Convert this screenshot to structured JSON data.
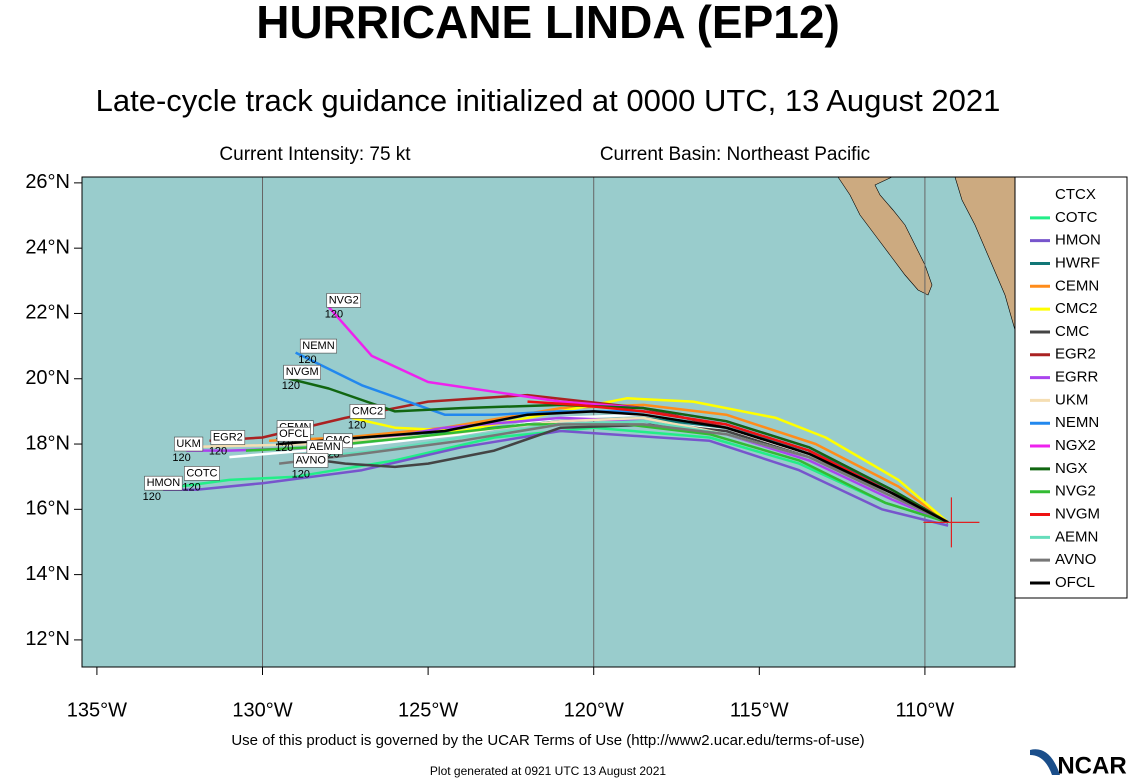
{
  "chart_data": {
    "type": "track",
    "title": "HURRICANE LINDA (EP12)",
    "subtitle": "Late-cycle track guidance initialized at 0000 UTC, 13 August 2021",
    "intensity": "Current Intensity: 75 kt",
    "basin": "Current Basin: Northeast Pacific",
    "footer": "Use of this product is governed by the UCAR Terms of Use (http://www2.ucar.edu/terms-of-use)",
    "generated": "Plot generated at 0921 UTC   13 August 2021",
    "logo": "NCAR",
    "xlim": [
      -135.45,
      -107.28
    ],
    "ylim": [
      11.17,
      26.18
    ],
    "xticks": [
      {
        "value": -135,
        "label": "135°W"
      },
      {
        "value": -130,
        "label": "130°W"
      },
      {
        "value": -125,
        "label": "125°W"
      },
      {
        "value": -120,
        "label": "120°W"
      },
      {
        "value": -115,
        "label": "115°W"
      },
      {
        "value": -110,
        "label": "110°W"
      }
    ],
    "yticks": [
      {
        "value": 12,
        "label": "12°N"
      },
      {
        "value": 14,
        "label": "14°N"
      },
      {
        "value": 16,
        "label": "16°N"
      },
      {
        "value": 18,
        "label": "18°N"
      },
      {
        "value": 20,
        "label": "20°N"
      },
      {
        "value": 22,
        "label": "22°N"
      },
      {
        "value": 24,
        "label": "24°N"
      },
      {
        "value": 26,
        "label": "26°N"
      }
    ],
    "grid": true,
    "current_position": {
      "lon": -109.2,
      "lat": 15.6
    },
    "series": [
      {
        "name": "CTCX",
        "color": "#ffffff",
        "x": [
          -109.3,
          -111,
          -113.5,
          -116,
          -118.5,
          -121,
          -124,
          -127.5,
          -131
        ],
        "values": [
          15.6,
          16.4,
          17.7,
          18.4,
          18.9,
          18.8,
          18.3,
          17.9,
          17.6
        ]
      },
      {
        "name": "COTC",
        "color": "#22ee88",
        "x": [
          -109.3,
          -111.2,
          -113.8,
          -116.5,
          -120,
          -123,
          -126,
          -129,
          -131,
          -132.5
        ],
        "values": [
          15.6,
          16.2,
          17.4,
          18.2,
          18.5,
          18.2,
          17.5,
          17.0,
          16.9,
          16.7
        ]
      },
      {
        "name": "HMON",
        "color": "#7755cc",
        "x": [
          -109.3,
          -111.3,
          -113.8,
          -116.5,
          -121,
          -124,
          -127,
          -130,
          -132,
          -133
        ],
        "values": [
          15.5,
          16.0,
          17.2,
          18.1,
          18.4,
          17.9,
          17.2,
          16.8,
          16.6,
          16.6
        ]
      },
      {
        "name": "HWRF",
        "color": "#117777",
        "x": [
          -109.3,
          -111,
          -113.5,
          -116,
          -118.5,
          -121,
          -124,
          -127
        ],
        "values": [
          15.6,
          16.6,
          17.8,
          18.5,
          18.8,
          18.7,
          18.4,
          18.2
        ]
      },
      {
        "name": "CEMN",
        "color": "#ff8c1a",
        "x": [
          -109.3,
          -110.8,
          -113.3,
          -116,
          -118.5,
          -121,
          -124.5,
          -127.5,
          -129.8
        ],
        "values": [
          15.6,
          16.7,
          18.0,
          18.9,
          19.2,
          19.1,
          18.5,
          18.2,
          18.1
        ]
      },
      {
        "name": "CMC2",
        "color": "#ffff00",
        "x": [
          -109.3,
          -110.8,
          -113,
          -114.5,
          -117,
          -119,
          -121,
          -124,
          -126,
          -127.3
        ],
        "values": [
          15.6,
          16.9,
          18.2,
          18.8,
          19.3,
          19.4,
          19.0,
          18.4,
          18.5,
          18.8
        ]
      },
      {
        "name": "CMC",
        "color": "#444444",
        "x": [
          -109.3,
          -111,
          -113.5,
          -116,
          -118,
          -121,
          -123,
          -125,
          -126,
          -127.5,
          -129
        ],
        "values": [
          15.6,
          16.5,
          17.6,
          18.4,
          18.6,
          18.5,
          17.8,
          17.4,
          17.3,
          17.4,
          17.6
        ]
      },
      {
        "name": "EGR2",
        "color": "#aa2222",
        "x": [
          -109.3,
          -111,
          -113.5,
          -116,
          -118.5,
          -122,
          -125,
          -127.5,
          -130,
          -131.6
        ],
        "values": [
          15.6,
          16.5,
          17.7,
          18.5,
          19.1,
          19.5,
          19.3,
          18.8,
          18.2,
          18.1
        ]
      },
      {
        "name": "EGRR",
        "color": "#aa44ee",
        "x": [
          -109.3,
          -111,
          -113.5,
          -116,
          -118.5,
          -121,
          -124.5,
          -128,
          -131,
          -132.3
        ],
        "values": [
          15.6,
          16.3,
          17.5,
          18.3,
          18.7,
          18.8,
          18.5,
          17.9,
          17.8,
          17.8
        ]
      },
      {
        "name": "UKM",
        "color": "#f5deb3",
        "x": [
          -109.3,
          -111,
          -113.5,
          -116,
          -118.5,
          -121,
          -124.5,
          -128.5,
          -132.5
        ],
        "values": [
          15.6,
          16.4,
          17.6,
          18.3,
          18.8,
          18.7,
          18.3,
          18.0,
          17.9
        ]
      },
      {
        "name": "NEMN",
        "color": "#2288ee",
        "x": [
          -109.3,
          -111,
          -113.5,
          -116,
          -118.5,
          -121,
          -123,
          -124.5,
          -127,
          -129
        ],
        "values": [
          15.6,
          16.5,
          17.8,
          18.6,
          19.0,
          19.0,
          18.9,
          18.9,
          19.8,
          20.8
        ]
      },
      {
        "name": "NGX2",
        "color": "#ee22ee",
        "x": [
          -109.3,
          -111,
          -113.5,
          -116,
          -118.5,
          -121,
          -123,
          -125,
          -126.7,
          -128
        ],
        "values": [
          15.6,
          16.6,
          17.9,
          18.7,
          19.1,
          19.3,
          19.6,
          19.9,
          20.7,
          22.2
        ]
      },
      {
        "name": "NGX",
        "color": "#116611",
        "x": [
          -109.3,
          -111,
          -113.5,
          -116,
          -118.5,
          -121,
          -124,
          -126,
          -128,
          -129.2
        ],
        "values": [
          15.6,
          16.6,
          17.9,
          18.7,
          19.1,
          19.2,
          19.1,
          19.0,
          19.7,
          20.0
        ]
      },
      {
        "name": "NVG2",
        "color": "#33bb33",
        "x": [
          -109.3,
          -111.2,
          -113.8,
          -116.5,
          -119,
          -122,
          -125.5,
          -128.5,
          -130.5
        ],
        "values": [
          15.6,
          16.2,
          17.5,
          18.3,
          18.6,
          18.6,
          18.2,
          17.9,
          17.8
        ]
      },
      {
        "name": "NVGM",
        "color": "#ee1111",
        "x": [
          -109.3,
          -111,
          -113.5,
          -116,
          -118.5,
          -120.5,
          -122
        ],
        "values": [
          15.6,
          16.5,
          17.8,
          18.6,
          19.0,
          19.2,
          19.3
        ]
      },
      {
        "name": "AEMN",
        "color": "#66ddbb",
        "x": [
          -109.3,
          -111,
          -113.5,
          -116,
          -118.5,
          -121,
          -124,
          -126.5,
          -128.5
        ],
        "values": [
          15.6,
          16.4,
          17.6,
          18.3,
          18.7,
          18.6,
          18.2,
          17.8,
          17.6
        ]
      },
      {
        "name": "AVNO",
        "color": "#777777",
        "x": [
          -109.3,
          -111,
          -113.5,
          -116,
          -118.5,
          -121,
          -124,
          -127,
          -129.5
        ],
        "values": [
          15.6,
          16.4,
          17.6,
          18.3,
          18.6,
          18.6,
          18.1,
          17.7,
          17.4
        ]
      },
      {
        "name": "OFCL",
        "color": "#000000",
        "x": [
          -109.3,
          -111,
          -113.5,
          -116,
          -118.5,
          -120,
          -122,
          -124.5,
          -127,
          -129.5
        ],
        "values": [
          15.6,
          16.5,
          17.7,
          18.5,
          18.9,
          19.0,
          18.9,
          18.4,
          18.2,
          18.0
        ]
      }
    ],
    "labels": [
      {
        "text": "NVG2",
        "lon": -128,
        "lat": 22.4,
        "hour": "120"
      },
      {
        "text": "NEMN",
        "lon": -128.8,
        "lat": 21.0,
        "hour": "120"
      },
      {
        "text": "NVGM",
        "lon": -129.3,
        "lat": 20.2,
        "hour": "120"
      },
      {
        "text": "CMC2",
        "lon": -127.3,
        "lat": 19.0,
        "hour": "120"
      },
      {
        "text": "CEMN",
        "lon": -129.5,
        "lat": 18.5,
        "hour": "120"
      },
      {
        "text": "EGR2",
        "lon": -131.5,
        "lat": 18.2,
        "hour": "120"
      },
      {
        "text": "OFCL",
        "lon": -129.5,
        "lat": 18.3,
        "hour": "120"
      },
      {
        "text": "UKM",
        "lon": -132.6,
        "lat": 18.0,
        "hour": "120"
      },
      {
        "text": "CMC",
        "lon": -128.1,
        "lat": 18.1,
        "hour": "120"
      },
      {
        "text": "AEMN",
        "lon": -128.6,
        "lat": 17.9,
        "hour": "120"
      },
      {
        "text": "AVNO",
        "lon": -129,
        "lat": 17.5,
        "hour": "120"
      },
      {
        "text": "COTC",
        "lon": -132.3,
        "lat": 17.1,
        "hour": "120"
      },
      {
        "text": "HMON",
        "lon": -133.5,
        "lat": 16.8,
        "hour": "120"
      }
    ]
  }
}
